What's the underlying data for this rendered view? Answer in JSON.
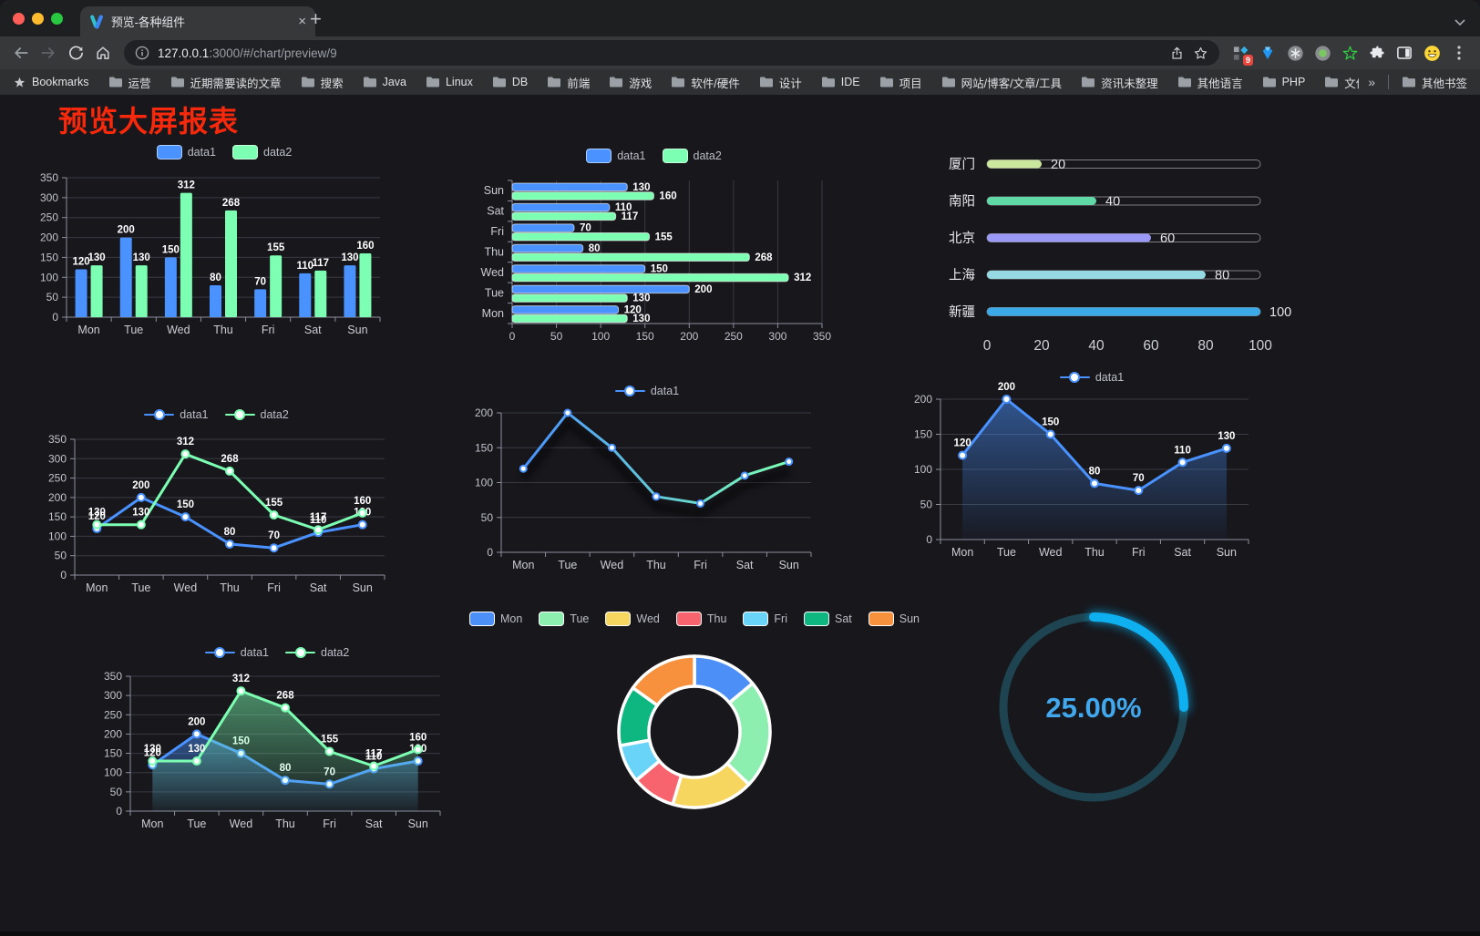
{
  "browser": {
    "traffic_lights": [
      "#ff5f57",
      "#febc2e",
      "#28c840"
    ],
    "tab": {
      "title": "预览-各种组件",
      "close_glyph": "×",
      "new_tab_glyph": "+"
    },
    "address": {
      "url_host": "127.0.0.1",
      "url_rest": ":3000/#/chart/preview/9"
    },
    "toolbar_icons": [
      "back-arrow",
      "forward-arrow",
      "reload",
      "home"
    ],
    "address_icons": [
      "site-info",
      "share",
      "bookmark-star"
    ],
    "extension_icons": [
      "proxy-switch",
      "blue-gem",
      "screenshot-tool",
      "recorder",
      "green-star",
      "puzzle-extensions",
      "side-panel",
      "emoji-extension",
      "menu-kebab"
    ],
    "extensions_badge": "9",
    "bookmarks": {
      "label": "Bookmarks",
      "items": [
        "运营",
        "近期需要读的文章",
        "搜索",
        "Java",
        "Linux",
        "DB",
        "前端",
        "游戏",
        "软件/硬件",
        "设计",
        "IDE",
        "项目",
        "网站/博客/文章/工具",
        "资讯未整理",
        "其他语言",
        "PHP",
        "文件服务器"
      ],
      "overflow_glyph": "»",
      "other_label": "其他书签"
    }
  },
  "page": {
    "title": "预览大屏报表",
    "title_color": "#f6290c",
    "background": "#17171c"
  },
  "chart_data": [
    {
      "id": "bar-vertical",
      "type": "bar",
      "categories": [
        "Mon",
        "Tue",
        "Wed",
        "Thu",
        "Fri",
        "Sat",
        "Sun"
      ],
      "series": [
        {
          "name": "data1",
          "color": "#4992ff",
          "values": [
            120,
            200,
            150,
            80,
            70,
            110,
            130
          ]
        },
        {
          "name": "data2",
          "color": "#7cffb2",
          "values": [
            130,
            130,
            312,
            268,
            155,
            117,
            160
          ]
        }
      ],
      "ylim": [
        0,
        350
      ],
      "ystep": 50,
      "legend_position": "top",
      "value_labels": true,
      "grid": true
    },
    {
      "id": "bar-horizontal",
      "type": "bar",
      "orientation": "horizontal",
      "categories": [
        "Mon",
        "Tue",
        "Wed",
        "Thu",
        "Fri",
        "Sat",
        "Sun"
      ],
      "display_order": "Sun-at-top",
      "series": [
        {
          "name": "data1",
          "color": "#4992ff",
          "values": [
            120,
            200,
            150,
            80,
            70,
            110,
            130
          ]
        },
        {
          "name": "data2",
          "color": "#7cffb2",
          "values": [
            130,
            130,
            312,
            268,
            155,
            117,
            160
          ]
        }
      ],
      "xlim": [
        0,
        350
      ],
      "xstep": 50,
      "legend_position": "top",
      "value_labels": true,
      "grid": true
    },
    {
      "id": "progress-bars",
      "type": "bar",
      "orientation": "horizontal",
      "categories": [
        "厦门",
        "南阳",
        "北京",
        "上海",
        "新疆"
      ],
      "values": [
        20,
        40,
        60,
        80,
        100
      ],
      "colors": [
        "#cbe79e",
        "#5fd9a6",
        "#9b99f6",
        "#95dae3",
        "#3ba8e8"
      ],
      "xlim": [
        0,
        100
      ],
      "xstep": 20,
      "value_labels": true
    },
    {
      "id": "line-two-series",
      "type": "line",
      "categories": [
        "Mon",
        "Tue",
        "Wed",
        "Thu",
        "Fri",
        "Sat",
        "Sun"
      ],
      "series": [
        {
          "name": "data1",
          "color": "#4992ff",
          "values": [
            120,
            200,
            150,
            80,
            70,
            110,
            130
          ]
        },
        {
          "name": "data2",
          "color": "#7cffb2",
          "values": [
            130,
            130,
            312,
            268,
            155,
            117,
            160
          ]
        }
      ],
      "ylim": [
        0,
        350
      ],
      "ystep": 50,
      "legend_position": "top",
      "value_labels": true,
      "grid": true
    },
    {
      "id": "line-gradient",
      "type": "line",
      "categories": [
        "Mon",
        "Tue",
        "Wed",
        "Thu",
        "Fri",
        "Sat",
        "Sun"
      ],
      "series": [
        {
          "name": "data1",
          "color": "#4992ff",
          "gradient": [
            "#4992ff",
            "#7cffb2"
          ],
          "values": [
            120,
            200,
            150,
            80,
            70,
            110,
            130
          ]
        }
      ],
      "ylim": [
        0,
        200
      ],
      "ystep": 50,
      "legend_position": "top",
      "value_labels": false,
      "grid": true
    },
    {
      "id": "area-single",
      "type": "area",
      "categories": [
        "Mon",
        "Tue",
        "Wed",
        "Thu",
        "Fri",
        "Sat",
        "Sun"
      ],
      "series": [
        {
          "name": "data1",
          "color": "#4992ff",
          "values": [
            120,
            200,
            150,
            80,
            70,
            110,
            130
          ]
        }
      ],
      "ylim": [
        0,
        200
      ],
      "ystep": 50,
      "legend_position": "top",
      "value_labels": true,
      "grid": true
    },
    {
      "id": "area-two-series",
      "type": "area",
      "categories": [
        "Mon",
        "Tue",
        "Wed",
        "Thu",
        "Fri",
        "Sat",
        "Sun"
      ],
      "series": [
        {
          "name": "data1",
          "color": "#4992ff",
          "values": [
            120,
            200,
            150,
            80,
            70,
            110,
            130
          ]
        },
        {
          "name": "data2",
          "color": "#7cffb2",
          "values": [
            130,
            130,
            312,
            268,
            155,
            117,
            160
          ]
        }
      ],
      "ylim": [
        0,
        350
      ],
      "ystep": 50,
      "legend_position": "top",
      "value_labels": true,
      "grid": true
    },
    {
      "id": "donut",
      "type": "pie",
      "inner_radius_ratio": 0.6,
      "legend_position": "top",
      "slices": [
        {
          "label": "Mon",
          "value": 120,
          "color": "#4c8ff7"
        },
        {
          "label": "Tue",
          "value": 200,
          "color": "#8defaf"
        },
        {
          "label": "Wed",
          "value": 150,
          "color": "#f6d65f"
        },
        {
          "label": "Thu",
          "value": 80,
          "color": "#f8646e"
        },
        {
          "label": "Fri",
          "value": 70,
          "color": "#69d4f8"
        },
        {
          "label": "Sat",
          "value": 110,
          "color": "#0db77f"
        },
        {
          "label": "Sun",
          "value": 130,
          "color": "#f7913d"
        }
      ]
    },
    {
      "id": "gauge",
      "type": "gauge",
      "value": 25,
      "max": 100,
      "label": "25.00%",
      "arc_color": "#0fb0f0",
      "track_color": "#1d4450",
      "text_color": "#41a8ee"
    }
  ]
}
